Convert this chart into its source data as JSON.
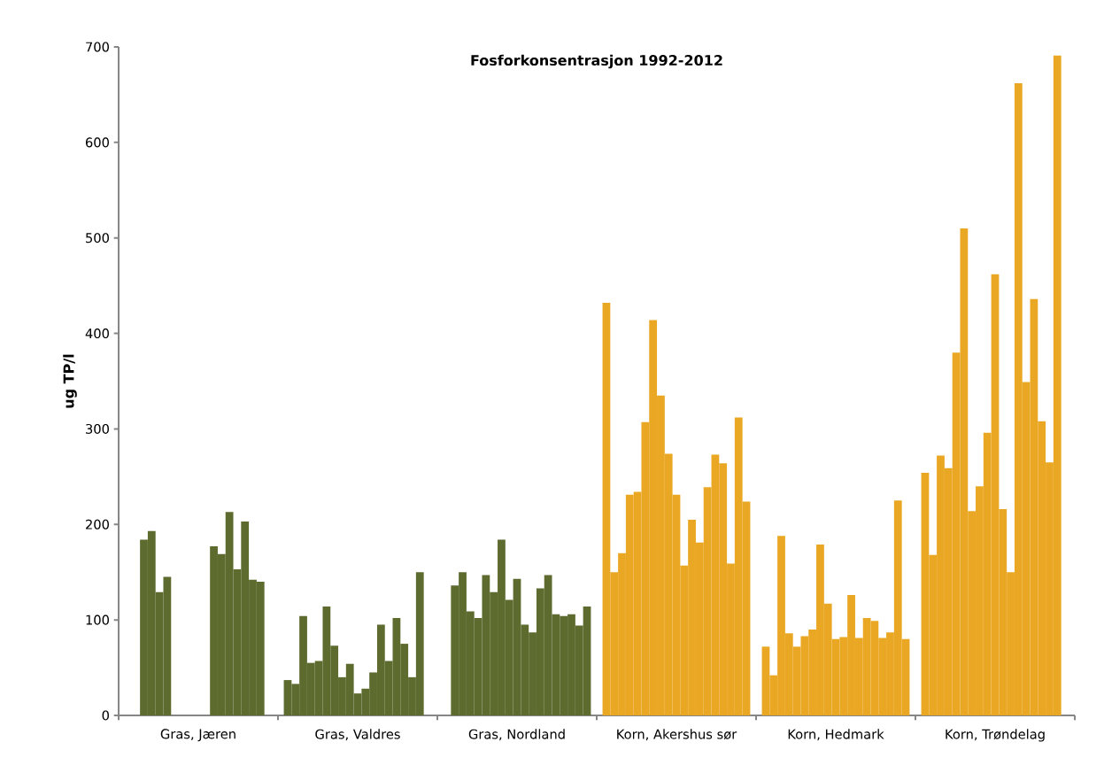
{
  "chart_data": {
    "type": "bar",
    "title": "Fosforkonsentrasjon 1992-2012",
    "ylabel": "ug TP/l",
    "categories": [
      "Gras, Jæren",
      "Gras, Valdres",
      "Gras, Nordland",
      "Korn, Akershus sør",
      "Korn, Hedmark",
      "Korn, Trøndelag"
    ],
    "ylim": [
      0,
      700
    ],
    "yticks": [
      0,
      100,
      200,
      300,
      400,
      500,
      600,
      700
    ],
    "series": [
      {
        "values": [
          null,
          37,
          null,
          432,
          72,
          254
        ],
        "colors": [
          "#5d6b2f",
          "#5d6b2f",
          "#5d6b2f",
          "#eaa723",
          "#eaa723",
          "#eaa723"
        ]
      },
      {
        "values": [
          null,
          33,
          136,
          150,
          42,
          168
        ],
        "colors": [
          "#5d6b2f",
          "#5d6b2f",
          "#5d6b2f",
          "#eaa723",
          "#eaa723",
          "#eaa723"
        ]
      },
      {
        "values": [
          184,
          104,
          150,
          170,
          188,
          272
        ],
        "colors": [
          "#5d6b2f",
          "#5d6b2f",
          "#5d6b2f",
          "#eaa723",
          "#eaa723",
          "#eaa723"
        ]
      },
      {
        "values": [
          193,
          55,
          109,
          231,
          86,
          259
        ],
        "colors": [
          "#5d6b2f",
          "#5d6b2f",
          "#5d6b2f",
          "#eaa723",
          "#eaa723",
          "#eaa723"
        ]
      },
      {
        "values": [
          129,
          57,
          102,
          234,
          72,
          380
        ],
        "colors": [
          "#5d6b2f",
          "#5d6b2f",
          "#5d6b2f",
          "#eaa723",
          "#eaa723",
          "#eaa723"
        ]
      },
      {
        "values": [
          145,
          114,
          147,
          307,
          83,
          510
        ],
        "colors": [
          "#5d6b2f",
          "#5d6b2f",
          "#5d6b2f",
          "#eaa723",
          "#eaa723",
          "#eaa723"
        ]
      },
      {
        "values": [
          null,
          73,
          129,
          414,
          90,
          214
        ],
        "colors": [
          "#5d6b2f",
          "#5d6b2f",
          "#5d6b2f",
          "#eaa723",
          "#eaa723",
          "#eaa723"
        ]
      },
      {
        "values": [
          null,
          40,
          184,
          335,
          179,
          240
        ],
        "colors": [
          "#5d6b2f",
          "#5d6b2f",
          "#5d6b2f",
          "#eaa723",
          "#eaa723",
          "#eaa723"
        ]
      },
      {
        "values": [
          null,
          54,
          121,
          274,
          117,
          296
        ],
        "colors": [
          "#5d6b2f",
          "#5d6b2f",
          "#5d6b2f",
          "#eaa723",
          "#eaa723",
          "#eaa723"
        ]
      },
      {
        "values": [
          null,
          23,
          143,
          231,
          80,
          462
        ],
        "colors": [
          "#5d6b2f",
          "#5d6b2f",
          "#5d6b2f",
          "#eaa723",
          "#eaa723",
          "#eaa723"
        ]
      },
      {
        "values": [
          null,
          28,
          95,
          157,
          82,
          216
        ],
        "colors": [
          "#5d6b2f",
          "#5d6b2f",
          "#5d6b2f",
          "#eaa723",
          "#eaa723",
          "#eaa723"
        ]
      },
      {
        "values": [
          177,
          45,
          87,
          205,
          126,
          150
        ],
        "colors": [
          "#5d6b2f",
          "#5d6b2f",
          "#5d6b2f",
          "#eaa723",
          "#eaa723",
          "#eaa723"
        ]
      },
      {
        "values": [
          169,
          95,
          133,
          181,
          81,
          662
        ],
        "colors": [
          "#5d6b2f",
          "#5d6b2f",
          "#5d6b2f",
          "#eaa723",
          "#eaa723",
          "#eaa723"
        ]
      },
      {
        "values": [
          213,
          57,
          147,
          239,
          102,
          349
        ],
        "colors": [
          "#5d6b2f",
          "#5d6b2f",
          "#5d6b2f",
          "#eaa723",
          "#eaa723",
          "#eaa723"
        ]
      },
      {
        "values": [
          153,
          102,
          106,
          273,
          99,
          436
        ],
        "colors": [
          "#5d6b2f",
          "#5d6b2f",
          "#5d6b2f",
          "#eaa723",
          "#eaa723",
          "#eaa723"
        ]
      },
      {
        "values": [
          203,
          75,
          104,
          264,
          81,
          308
        ],
        "colors": [
          "#5d6b2f",
          "#5d6b2f",
          "#5d6b2f",
          "#eaa723",
          "#eaa723",
          "#eaa723"
        ]
      },
      {
        "values": [
          142,
          40,
          106,
          159,
          87,
          265
        ],
        "colors": [
          "#5d6b2f",
          "#5d6b2f",
          "#5d6b2f",
          "#eaa723",
          "#eaa723",
          "#eaa723"
        ]
      },
      {
        "values": [
          140,
          150,
          94,
          312,
          225,
          691
        ],
        "colors": [
          "#5d6b2f",
          "#5d6b2f",
          "#5d6b2f",
          "#eaa723",
          "#eaa723",
          "#eaa723"
        ]
      },
      {
        "values": [
          null,
          null,
          114,
          224,
          80,
          null
        ],
        "colors": [
          "#5d6b2f",
          "#5d6b2f",
          "#5d6b2f",
          "#eaa723",
          "#eaa723",
          "#eaa723"
        ]
      }
    ]
  }
}
